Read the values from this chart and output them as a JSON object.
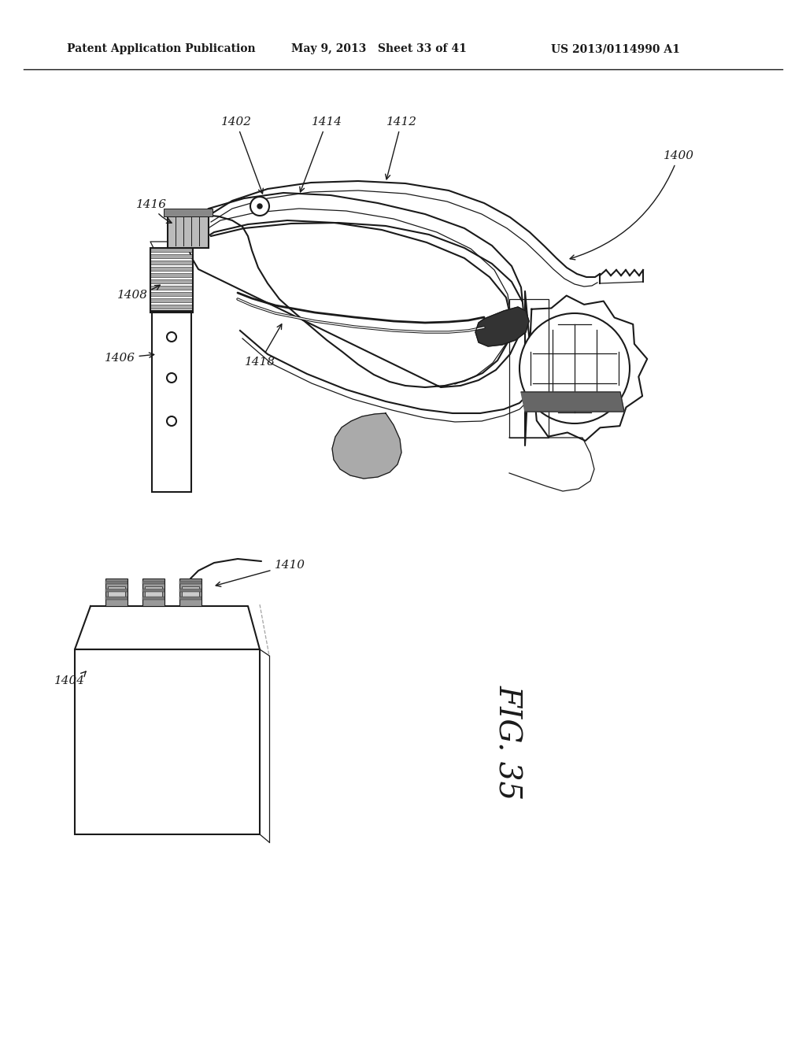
{
  "background_color": "#ffffff",
  "header_left": "Patent Application Publication",
  "header_center": "May 9, 2013   Sheet 33 of 41",
  "header_right": "US 2013/0114990 A1",
  "fig_label": "FIG. 35",
  "line_color": "#1a1a1a",
  "label_fontsize": 11,
  "header_fontsize": 10,
  "fig_fontsize": 28
}
